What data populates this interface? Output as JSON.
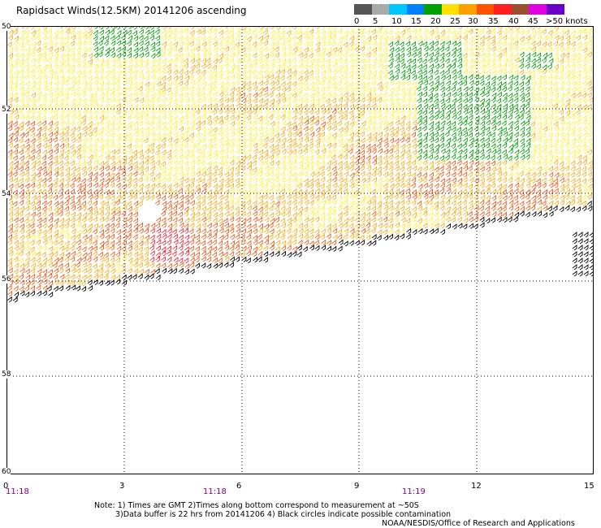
{
  "title": "Rapidsact Winds(12.5KM) 20141206 ascending",
  "speed_scale": {
    "labels": [
      "0",
      "5",
      "10",
      "15",
      "20",
      "25",
      "30",
      "35",
      "40",
      "45",
      ">50 knots"
    ],
    "colors": [
      "#555555",
      "#aaaaaa",
      "#00c8ff",
      "#0080ff",
      "#00a000",
      "#ffe000",
      "#ffa000",
      "#ff5000",
      "#ff2020",
      "#9a5030",
      "#e000e0",
      "#6a00c8"
    ]
  },
  "axes": {
    "lat_labels": [
      "50",
      "52",
      "54",
      "56",
      "58",
      "60"
    ],
    "lon_labels": [
      "0",
      "3",
      "6",
      "9",
      "12",
      "15"
    ],
    "time_labels": [
      "11:18",
      "11:18",
      "11:19"
    ]
  },
  "swath_colors": {
    "calm": "#ffee40",
    "moderate": "#f4b020",
    "strong": "#e86020",
    "stormy": "#e03040",
    "light": "#10a010",
    "edge": "#000000"
  },
  "notes": {
    "line1": "Note: 1) Times are GMT 2)Times along bottom correspond to measurement at ~50S",
    "line2": "3)Data buffer is 22 hrs from 20141206 4) Black circles indicate possible contamination",
    "line3": "NOAA/NESDIS/Office of Research and Applications"
  }
}
